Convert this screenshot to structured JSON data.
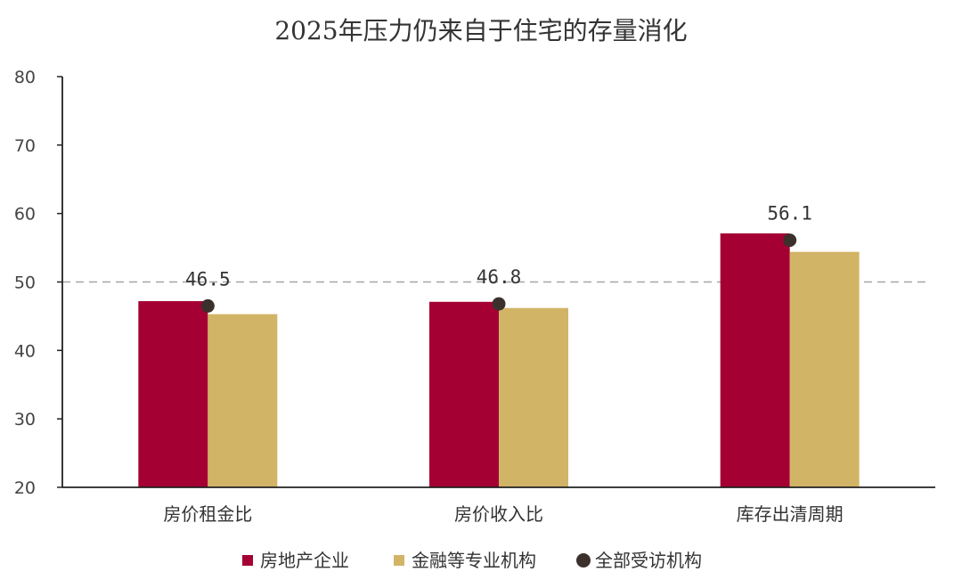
{
  "chart_data": {
    "type": "bar",
    "title": "2025年压力仍来自于住宅的存量消化",
    "categories": [
      "房价租金比",
      "房价收入比",
      "库存出清周期"
    ],
    "series": [
      {
        "name": "房地产企业",
        "type": "bar",
        "color": "#A50034",
        "values": [
          47.2,
          47.1,
          57.1
        ]
      },
      {
        "name": "金融等专业机构",
        "type": "bar",
        "color": "#D2B466",
        "values": [
          45.3,
          46.2,
          54.4
        ]
      },
      {
        "name": "全部受访机构",
        "type": "scatter",
        "color": "#3B302C",
        "values": [
          46.5,
          46.8,
          56.1
        ]
      }
    ],
    "data_labels": [
      "46.5",
      "46.8",
      "56.1"
    ],
    "ylim": [
      20,
      80
    ],
    "yticks": [
      "20",
      "30",
      "40",
      "50",
      "60",
      "70",
      "80"
    ],
    "reference_line": 50,
    "xlabel": "",
    "ylabel": "",
    "grid": false,
    "legend_position": "bottom"
  }
}
